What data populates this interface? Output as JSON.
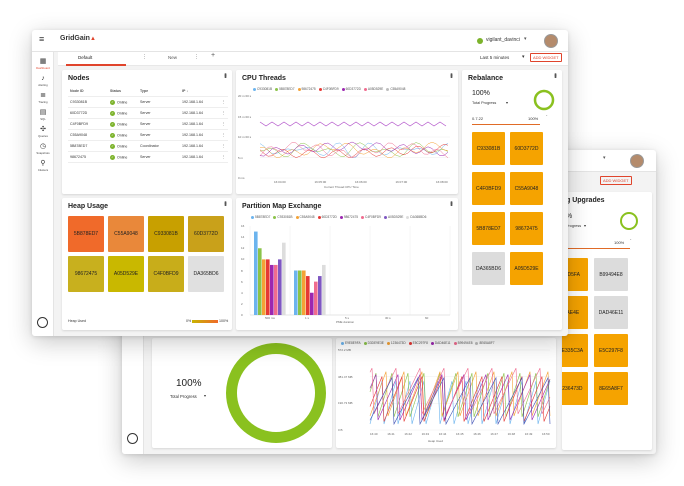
{
  "app": {
    "logo_text": "GridGain",
    "logo_sub": "",
    "user": "vigilant_davinci"
  },
  "tabs": [
    {
      "label": "Default"
    },
    {
      "label": "New"
    }
  ],
  "toolbar": {
    "time_range": "Last 5 minutes",
    "add_widget": "ADD WIDGET"
  },
  "nav": [
    {
      "label": "Dashboard",
      "icon": "dashboard-icon"
    },
    {
      "label": "Alerting",
      "icon": "bell-icon"
    },
    {
      "label": "Tracing",
      "icon": "tracing-icon"
    },
    {
      "label": "SQL",
      "icon": "database-icon"
    },
    {
      "label": "Queries",
      "icon": "queries-icon"
    },
    {
      "label": "Snapshots",
      "icon": "clock-icon"
    },
    {
      "label": "Clusters",
      "icon": "clusters-icon"
    }
  ],
  "nav_footer": "",
  "nodes": {
    "title": "Nodes",
    "columns": [
      "Node ID",
      "Status",
      "Type",
      "IP"
    ],
    "rows": [
      {
        "id": "C933081B",
        "status": "Online",
        "type": "Server",
        "ip": "192.168.1.64"
      },
      {
        "id": "60D3772D",
        "status": "Online",
        "type": "Server",
        "ip": "192.168.1.64"
      },
      {
        "id": "C4F0BFD9",
        "status": "Online",
        "type": "Server",
        "ip": "192.168.1.64"
      },
      {
        "id": "C55A9048",
        "status": "Online",
        "type": "Server",
        "ip": "192.168.1.64"
      },
      {
        "id": "5B878ED7",
        "status": "Online",
        "type": "Coordinator",
        "ip": "192.168.1.64"
      },
      {
        "id": "98672475",
        "status": "Online",
        "type": "Server",
        "ip": "192.168.1.64"
      }
    ]
  },
  "cpu": {
    "title": "CPU Threads",
    "legend": [
      "C933081B",
      "5B878ED7",
      "98672475",
      "C4F0BFD9",
      "60D3772D",
      "A05D529E",
      "C55A9048"
    ],
    "colors": [
      "#6cb4ee",
      "#8bc34a",
      "#f4a236",
      "#e53935",
      "#9c27b0",
      "#ef6c8f",
      "#bdbdbd"
    ],
    "xlabel": "Current Thread CPU Time",
    "y_ticks": [
      "20 m 00 s",
      "15 m 00 s",
      "10 m 00 s",
      "5 m",
      "0 ms"
    ],
    "x_ticks": [
      "16:04:00",
      "16:05:00",
      "16:06:00",
      "16:07:00",
      "16:08:00"
    ]
  },
  "heap": {
    "title": "Heap Usage",
    "tiles": [
      {
        "id": "5B878ED7",
        "color": "#f06a2a"
      },
      {
        "id": "C55A9048",
        "color": "#e9883a"
      },
      {
        "id": "C933081B",
        "color": "#c8a000"
      },
      {
        "id": "60D3772D",
        "color": "#c9a11a"
      },
      {
        "id": "98672475",
        "color": "#c8b01e"
      },
      {
        "id": "A05D529E",
        "color": "#c9b800"
      },
      {
        "id": "C4F0BFD9",
        "color": "#c8ad1a"
      },
      {
        "id": "DA365BD6",
        "color": "#e0e0e0"
      }
    ],
    "footer_label": "Heap Used",
    "scale_min": "0%",
    "scale_max": "100%"
  },
  "pme": {
    "title": "Partition Map Exchange",
    "legend": [
      "5B878ED7",
      "C933081B",
      "C55A9048",
      "60D3772D",
      "98672475",
      "C4F0BFD9",
      "A05D529E",
      "DA365BD6"
    ],
    "colors": [
      "#6cb4ee",
      "#8bc34a",
      "#f4a236",
      "#e53935",
      "#9c27b0",
      "#ef6c8f",
      "#7e57c2",
      "#dddddd"
    ],
    "xlabel": "PME duration",
    "y_ticks": [
      "16",
      "14",
      "12",
      "10",
      "8",
      "6",
      "4",
      "2",
      "0"
    ],
    "x_ticks": [
      "500 ms",
      "1 s",
      "5 s",
      "30 s",
      "60"
    ]
  },
  "chart_data": [
    {
      "type": "bar",
      "title": "Partition Map Exchange",
      "categories": [
        "500 ms",
        "1 s",
        "5 s",
        "30 s",
        "60"
      ],
      "xlabel": "PME duration",
      "ylim": [
        0,
        16
      ],
      "series": [
        {
          "name": "5B878ED7",
          "values": [
            15,
            8,
            0,
            0,
            0
          ]
        },
        {
          "name": "C933081B",
          "values": [
            12,
            8,
            0,
            0,
            0
          ]
        },
        {
          "name": "C55A9048",
          "values": [
            10,
            8,
            0,
            0,
            0
          ]
        },
        {
          "name": "60D3772D",
          "values": [
            10,
            7,
            0,
            0,
            0
          ]
        },
        {
          "name": "98672475",
          "values": [
            9,
            4,
            0,
            0,
            0
          ]
        },
        {
          "name": "C4F0BFD9",
          "values": [
            9,
            6,
            0,
            0,
            0
          ]
        },
        {
          "name": "A05D529E",
          "values": [
            10,
            7,
            0,
            0,
            0
          ]
        },
        {
          "name": "DA365BD6",
          "values": [
            13,
            9,
            0,
            0,
            0
          ]
        }
      ]
    }
  ],
  "rebalance": {
    "title": "Rebalance",
    "progress": "100%",
    "progress_label": "Total Progress",
    "progress_value": 1.0,
    "version": "0.7.22",
    "version_pct": "100%",
    "tiles": [
      "C933081B",
      "60D3772D",
      "C4F0BFD9",
      "C55A9048",
      "5B878ED7",
      "98672475",
      "DA365BD6",
      "A05D529E"
    ],
    "tile_color": "#f5a300",
    "tile_grey": "#dcdcdc"
  },
  "back": {
    "user": "vigilant_davinci",
    "add_widget": "ADD WIDGET",
    "upgrades_title": "g Upgrades",
    "upgrade_pct": "%",
    "upgrade_label": "Progress",
    "upgrade_version": "2",
    "upgrade_version_pct": "100%",
    "upgrade_tiles": [
      "63D5FA",
      "B99494E8",
      "DAE4E",
      "DAD46E11",
      "6E335C3A",
      "E5C297F8",
      "1236473D",
      "8E65A8F7"
    ],
    "total_progress": "100%",
    "total_progress_label": "Total Progress",
    "heap_legend": [
      "E9E8E9FA",
      "D3DE9E3E",
      "1236473D",
      "E5C297F8",
      "DAD46E11",
      "B99494E8",
      "8E65A8F7"
    ],
    "heap_y_ticks": [
      "572.2 MB",
      "381.47 MB",
      "190.73 MB",
      "0 B"
    ],
    "heap_x_ticks": [
      "16:40",
      "16:41",
      "16:42",
      "16:43",
      "16:44",
      "16:45",
      "16:46",
      "16:47",
      "16:48",
      "16:49",
      "16:50"
    ],
    "heap_xlabel": "Heap Used",
    "nav_footer": ""
  }
}
